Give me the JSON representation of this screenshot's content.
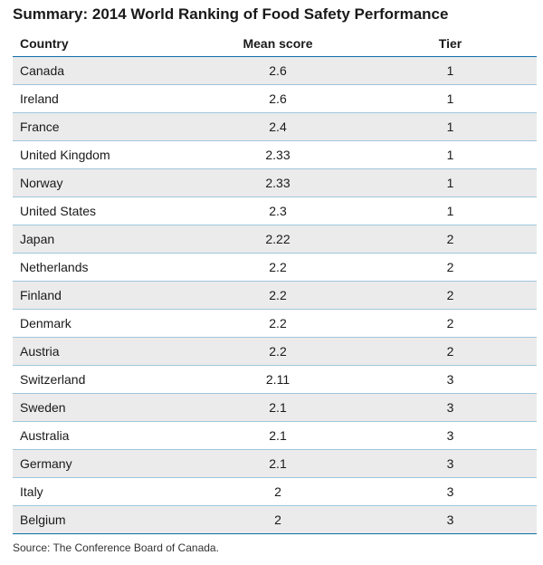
{
  "title": "Summary: 2014 World Ranking of Food Safety Performance",
  "columns": [
    "Country",
    "Mean score",
    "Tier"
  ],
  "source": "Source: The Conference Board of Canada.",
  "chart_data": {
    "type": "table",
    "title": "Summary: 2014 World Ranking of Food Safety Performance",
    "columns": [
      "Country",
      "Mean score",
      "Tier"
    ],
    "rows": [
      [
        "Canada",
        "2.6",
        "1"
      ],
      [
        "Ireland",
        "2.6",
        "1"
      ],
      [
        "France",
        "2.4",
        "1"
      ],
      [
        "United Kingdom",
        "2.33",
        "1"
      ],
      [
        "Norway",
        "2.33",
        "1"
      ],
      [
        "United States",
        "2.3",
        "1"
      ],
      [
        "Japan",
        "2.22",
        "2"
      ],
      [
        "Netherlands",
        "2.2",
        "2"
      ],
      [
        "Finland",
        "2.2",
        "2"
      ],
      [
        "Denmark",
        "2.2",
        "2"
      ],
      [
        "Austria",
        "2.2",
        "2"
      ],
      [
        "Switzerland",
        "2.11",
        "3"
      ],
      [
        "Sweden",
        "2.1",
        "3"
      ],
      [
        "Australia",
        "2.1",
        "3"
      ],
      [
        "Germany",
        "2.1",
        "3"
      ],
      [
        "Italy",
        "2",
        "3"
      ],
      [
        "Belgium",
        "2",
        "3"
      ]
    ]
  }
}
